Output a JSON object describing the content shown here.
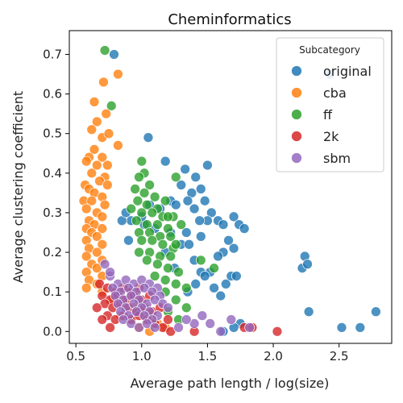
{
  "chart_data": {
    "type": "scatter",
    "title": "Cheminformatics",
    "xlabel": "Average path length / log(size)",
    "ylabel": "Average clustering coefficient",
    "xlim": [
      0.45,
      2.9
    ],
    "ylim": [
      -0.03,
      0.76
    ],
    "xticks": [
      "0.5",
      "1.0",
      "1.5",
      "2.0",
      "2.5"
    ],
    "xtick_values": [
      0.5,
      1.0,
      1.5,
      2.0,
      2.5
    ],
    "yticks": [
      "0.0",
      "0.1",
      "0.2",
      "0.3",
      "0.4",
      "0.5",
      "0.6",
      "0.7"
    ],
    "ytick_values": [
      0.0,
      0.1,
      0.2,
      0.3,
      0.4,
      0.5,
      0.6,
      0.7
    ],
    "grid": false,
    "legend_title": "Subcategory",
    "legend_position": "top-right",
    "series": [
      {
        "name": "original",
        "color": "#1f77b4",
        "points": [
          [
            0.79,
            0.7
          ],
          [
            1.05,
            0.49
          ],
          [
            1.18,
            0.43
          ],
          [
            1.33,
            0.41
          ],
          [
            1.3,
            0.37
          ],
          [
            1.38,
            0.35
          ],
          [
            1.41,
            0.39
          ],
          [
            1.5,
            0.42
          ],
          [
            1.45,
            0.36
          ],
          [
            1.35,
            0.33
          ],
          [
            1.22,
            0.33
          ],
          [
            1.26,
            0.32
          ],
          [
            1.4,
            0.31
          ],
          [
            1.48,
            0.33
          ],
          [
            1.53,
            0.3
          ],
          [
            1.58,
            0.28
          ],
          [
            1.62,
            0.27
          ],
          [
            1.7,
            0.29
          ],
          [
            1.74,
            0.27
          ],
          [
            1.78,
            0.26
          ],
          [
            1.5,
            0.28
          ],
          [
            1.45,
            0.24
          ],
          [
            1.34,
            0.25
          ],
          [
            1.22,
            0.25
          ],
          [
            1.1,
            0.26
          ],
          [
            1.02,
            0.27
          ],
          [
            0.92,
            0.28
          ],
          [
            0.85,
            0.28
          ],
          [
            0.88,
            0.3
          ],
          [
            1.0,
            0.29
          ],
          [
            1.06,
            0.32
          ],
          [
            1.14,
            0.31
          ],
          [
            1.66,
            0.23
          ],
          [
            1.62,
            0.2
          ],
          [
            1.7,
            0.21
          ],
          [
            1.58,
            0.19
          ],
          [
            1.52,
            0.15
          ],
          [
            1.45,
            0.15
          ],
          [
            1.48,
            0.14
          ],
          [
            1.41,
            0.12
          ],
          [
            1.55,
            0.11
          ],
          [
            1.64,
            0.12
          ],
          [
            1.68,
            0.14
          ],
          [
            1.72,
            0.14
          ],
          [
            1.6,
            0.09
          ],
          [
            1.4,
            0.18
          ],
          [
            1.3,
            0.22
          ],
          [
            0.9,
            0.23
          ],
          [
            1.18,
            0.2
          ],
          [
            1.25,
            0.16
          ],
          [
            1.35,
            0.1
          ],
          [
            2.22,
            0.16
          ],
          [
            2.24,
            0.19
          ],
          [
            2.26,
            0.17
          ],
          [
            2.27,
            0.05
          ],
          [
            2.52,
            0.01
          ],
          [
            2.66,
            0.01
          ],
          [
            2.78,
            0.05
          ],
          [
            1.75,
            0.02
          ],
          [
            1.7,
            0.01
          ],
          [
            1.62,
            0.0
          ],
          [
            2.43,
            0.65
          ],
          [
            1.44,
            0.28
          ],
          [
            1.36,
            0.22
          ]
        ]
      },
      {
        "name": "cba",
        "color": "#ff7f0e",
        "points": [
          [
            0.82,
            0.65
          ],
          [
            0.71,
            0.63
          ],
          [
            0.64,
            0.58
          ],
          [
            0.73,
            0.55
          ],
          [
            0.66,
            0.53
          ],
          [
            0.7,
            0.49
          ],
          [
            0.62,
            0.51
          ],
          [
            0.75,
            0.5
          ],
          [
            0.82,
            0.47
          ],
          [
            0.64,
            0.46
          ],
          [
            0.6,
            0.44
          ],
          [
            0.58,
            0.43
          ],
          [
            0.7,
            0.44
          ],
          [
            0.66,
            0.42
          ],
          [
            0.74,
            0.42
          ],
          [
            0.62,
            0.4
          ],
          [
            0.72,
            0.39
          ],
          [
            0.68,
            0.38
          ],
          [
            0.57,
            0.37
          ],
          [
            0.74,
            0.37
          ],
          [
            0.6,
            0.36
          ],
          [
            0.64,
            0.35
          ],
          [
            0.7,
            0.34
          ],
          [
            0.56,
            0.33
          ],
          [
            0.62,
            0.33
          ],
          [
            0.72,
            0.32
          ],
          [
            0.58,
            0.31
          ],
          [
            0.66,
            0.3
          ],
          [
            0.7,
            0.29
          ],
          [
            0.6,
            0.28
          ],
          [
            0.64,
            0.27
          ],
          [
            0.58,
            0.26
          ],
          [
            0.7,
            0.26
          ],
          [
            0.62,
            0.25
          ],
          [
            0.66,
            0.24
          ],
          [
            0.58,
            0.23
          ],
          [
            0.7,
            0.22
          ],
          [
            0.6,
            0.21
          ],
          [
            0.66,
            0.2
          ],
          [
            0.58,
            0.19
          ],
          [
            0.7,
            0.18
          ],
          [
            0.62,
            0.17
          ],
          [
            0.66,
            0.16
          ],
          [
            0.58,
            0.15
          ],
          [
            0.7,
            0.14
          ],
          [
            0.6,
            0.13
          ],
          [
            0.66,
            0.12
          ],
          [
            0.58,
            0.11
          ],
          [
            0.7,
            0.1
          ],
          [
            0.78,
            0.08
          ],
          [
            0.86,
            0.07
          ],
          [
            0.94,
            0.06
          ],
          [
            1.02,
            0.05
          ],
          [
            1.08,
            0.04
          ],
          [
            1.12,
            0.02
          ],
          [
            1.18,
            0.01
          ],
          [
            1.06,
            0.0
          ],
          [
            0.98,
            0.01
          ],
          [
            0.92,
            0.03
          ],
          [
            0.84,
            0.04
          ]
        ]
      },
      {
        "name": "ff",
        "color": "#2ca02c",
        "points": [
          [
            0.72,
            0.71
          ],
          [
            0.77,
            0.57
          ],
          [
            1.0,
            0.43
          ],
          [
            1.02,
            0.4
          ],
          [
            0.98,
            0.39
          ],
          [
            1.06,
            0.37
          ],
          [
            0.95,
            0.36
          ],
          [
            1.02,
            0.35
          ],
          [
            1.1,
            0.34
          ],
          [
            1.18,
            0.33
          ],
          [
            0.97,
            0.33
          ],
          [
            1.04,
            0.32
          ],
          [
            1.12,
            0.31
          ],
          [
            0.92,
            0.31
          ],
          [
            1.0,
            0.3
          ],
          [
            1.08,
            0.3
          ],
          [
            1.16,
            0.29
          ],
          [
            1.24,
            0.29
          ],
          [
            0.96,
            0.28
          ],
          [
            1.04,
            0.27
          ],
          [
            1.12,
            0.27
          ],
          [
            1.2,
            0.26
          ],
          [
            0.98,
            0.25
          ],
          [
            1.06,
            0.25
          ],
          [
            1.14,
            0.24
          ],
          [
            1.22,
            0.24
          ],
          [
            1.0,
            0.23
          ],
          [
            1.08,
            0.23
          ],
          [
            1.16,
            0.22
          ],
          [
            1.24,
            0.21
          ],
          [
            0.98,
            0.2
          ],
          [
            1.06,
            0.2
          ],
          [
            1.14,
            0.19
          ],
          [
            1.22,
            0.19
          ],
          [
            1.04,
            0.18
          ],
          [
            1.12,
            0.17
          ],
          [
            1.2,
            0.16
          ],
          [
            1.28,
            0.15
          ],
          [
            1.1,
            0.14
          ],
          [
            1.18,
            0.13
          ],
          [
            1.26,
            0.12
          ],
          [
            1.34,
            0.11
          ],
          [
            1.18,
            0.1
          ],
          [
            1.26,
            0.08
          ],
          [
            1.34,
            0.06
          ],
          [
            1.2,
            0.05
          ],
          [
            1.28,
            0.03
          ],
          [
            1.26,
            0.39
          ],
          [
            1.26,
            0.22
          ],
          [
            1.2,
            0.29
          ],
          [
            1.45,
            0.18
          ],
          [
            1.55,
            0.16
          ],
          [
            1.3,
            0.27
          ]
        ]
      },
      {
        "name": "2k",
        "color": "#d62728",
        "points": [
          [
            0.68,
            0.12
          ],
          [
            0.74,
            0.11
          ],
          [
            0.8,
            0.1
          ],
          [
            0.86,
            0.11
          ],
          [
            0.92,
            0.1
          ],
          [
            0.98,
            0.11
          ],
          [
            0.7,
            0.09
          ],
          [
            0.76,
            0.08
          ],
          [
            0.82,
            0.09
          ],
          [
            0.88,
            0.08
          ],
          [
            0.94,
            0.09
          ],
          [
            1.0,
            0.08
          ],
          [
            1.06,
            0.09
          ],
          [
            0.72,
            0.07
          ],
          [
            0.78,
            0.06
          ],
          [
            0.84,
            0.07
          ],
          [
            0.9,
            0.06
          ],
          [
            0.96,
            0.05
          ],
          [
            1.02,
            0.06
          ],
          [
            1.08,
            0.05
          ],
          [
            0.74,
            0.04
          ],
          [
            0.8,
            0.03
          ],
          [
            0.86,
            0.04
          ],
          [
            0.92,
            0.03
          ],
          [
            0.98,
            0.04
          ],
          [
            1.04,
            0.03
          ],
          [
            1.1,
            0.02
          ],
          [
            1.16,
            0.01
          ],
          [
            1.22,
            0.0
          ],
          [
            0.66,
            0.06
          ],
          [
            0.7,
            0.03
          ],
          [
            0.76,
            0.01
          ],
          [
            1.4,
            0.0
          ],
          [
            1.78,
            0.01
          ],
          [
            1.84,
            0.01
          ],
          [
            2.03,
            0.0
          ],
          [
            1.14,
            0.06
          ],
          [
            1.2,
            0.03
          ]
        ]
      },
      {
        "name": "sbm",
        "color": "#9467bd",
        "points": [
          [
            0.72,
            0.17
          ],
          [
            0.76,
            0.14
          ],
          [
            0.82,
            0.12
          ],
          [
            0.88,
            0.13
          ],
          [
            0.94,
            0.12
          ],
          [
            1.0,
            0.13
          ],
          [
            1.06,
            0.12
          ],
          [
            1.12,
            0.11
          ],
          [
            0.78,
            0.11
          ],
          [
            0.84,
            0.1
          ],
          [
            0.9,
            0.11
          ],
          [
            0.96,
            0.1
          ],
          [
            1.02,
            0.11
          ],
          [
            1.08,
            0.1
          ],
          [
            1.14,
            0.09
          ],
          [
            0.8,
            0.09
          ],
          [
            0.86,
            0.08
          ],
          [
            0.92,
            0.09
          ],
          [
            0.98,
            0.08
          ],
          [
            1.04,
            0.07
          ],
          [
            1.1,
            0.08
          ],
          [
            1.16,
            0.07
          ],
          [
            0.82,
            0.07
          ],
          [
            0.88,
            0.06
          ],
          [
            0.94,
            0.07
          ],
          [
            1.0,
            0.06
          ],
          [
            1.06,
            0.05
          ],
          [
            1.12,
            0.04
          ],
          [
            0.84,
            0.05
          ],
          [
            0.9,
            0.04
          ],
          [
            0.96,
            0.05
          ],
          [
            1.02,
            0.04
          ],
          [
            1.08,
            0.03
          ],
          [
            0.86,
            0.03
          ],
          [
            0.92,
            0.02
          ],
          [
            0.98,
            0.01
          ],
          [
            1.04,
            0.02
          ],
          [
            1.1,
            0.01
          ],
          [
            1.4,
            0.02
          ],
          [
            1.34,
            0.03
          ],
          [
            1.28,
            0.01
          ],
          [
            1.52,
            0.02
          ],
          [
            1.68,
            0.03
          ],
          [
            1.82,
            0.01
          ],
          [
            1.6,
            0.0
          ],
          [
            1.46,
            0.04
          ],
          [
            0.76,
            0.15
          ],
          [
            1.2,
            0.06
          ]
        ]
      }
    ]
  }
}
